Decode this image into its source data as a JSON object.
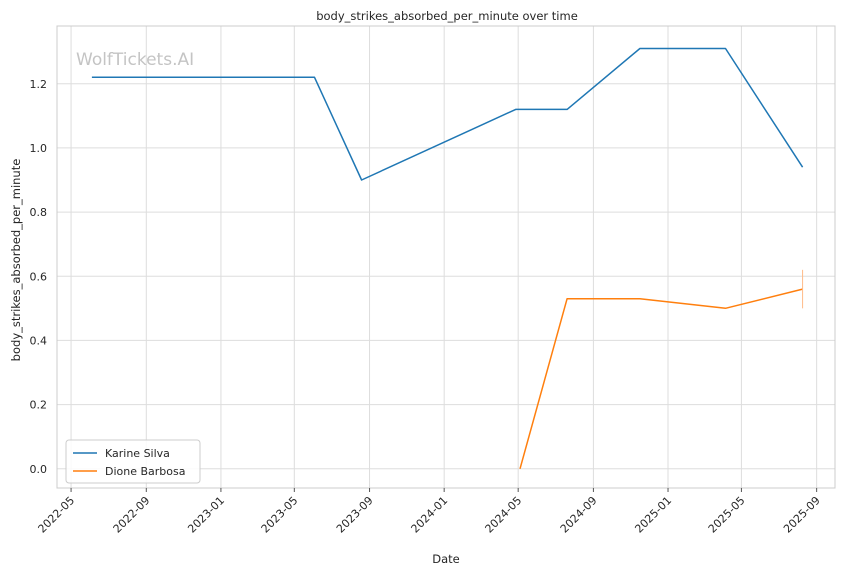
{
  "chart_data": {
    "type": "line",
    "title": "body_strikes_absorbed_per_minute over time",
    "xlabel": "Date",
    "ylabel": "body_strikes_absorbed_per_minute",
    "watermark": "WolfTickets.AI",
    "x_ticks": [
      "2022-05",
      "2022-09",
      "2023-01",
      "2023-05",
      "2023-09",
      "2024-01",
      "2024-05",
      "2024-09",
      "2025-01",
      "2025-05",
      "2025-09"
    ],
    "y_ticks": [
      "0.0",
      "0.2",
      "0.4",
      "0.6",
      "0.8",
      "1.0",
      "1.2"
    ],
    "xlim": [
      "2022-04-08",
      "2025-10-01"
    ],
    "ylim": [
      -0.06,
      1.38
    ],
    "grid": true,
    "legend_position": "lower-left",
    "series": [
      {
        "name": "Karine Silva",
        "color": "#1f77b4",
        "points": [
          {
            "x": "2022-06-04",
            "y": 1.22
          },
          {
            "x": "2023-06-03",
            "y": 1.22
          },
          {
            "x": "2023-08-19",
            "y": 0.9
          },
          {
            "x": "2024-04-27",
            "y": 1.12
          },
          {
            "x": "2024-07-20",
            "y": 1.12
          },
          {
            "x": "2024-11-16",
            "y": 1.31
          },
          {
            "x": "2025-04-05",
            "y": 1.31
          },
          {
            "x": "2025-08-09",
            "y": 0.94
          }
        ]
      },
      {
        "name": "Dione Barbosa",
        "color": "#ff7f0e",
        "points": [
          {
            "x": "2024-05-04",
            "y": 0.0
          },
          {
            "x": "2024-07-20",
            "y": 0.53
          },
          {
            "x": "2024-11-16",
            "y": 0.53
          },
          {
            "x": "2025-04-05",
            "y": 0.5
          },
          {
            "x": "2025-08-09",
            "y": 0.56
          }
        ]
      }
    ]
  }
}
